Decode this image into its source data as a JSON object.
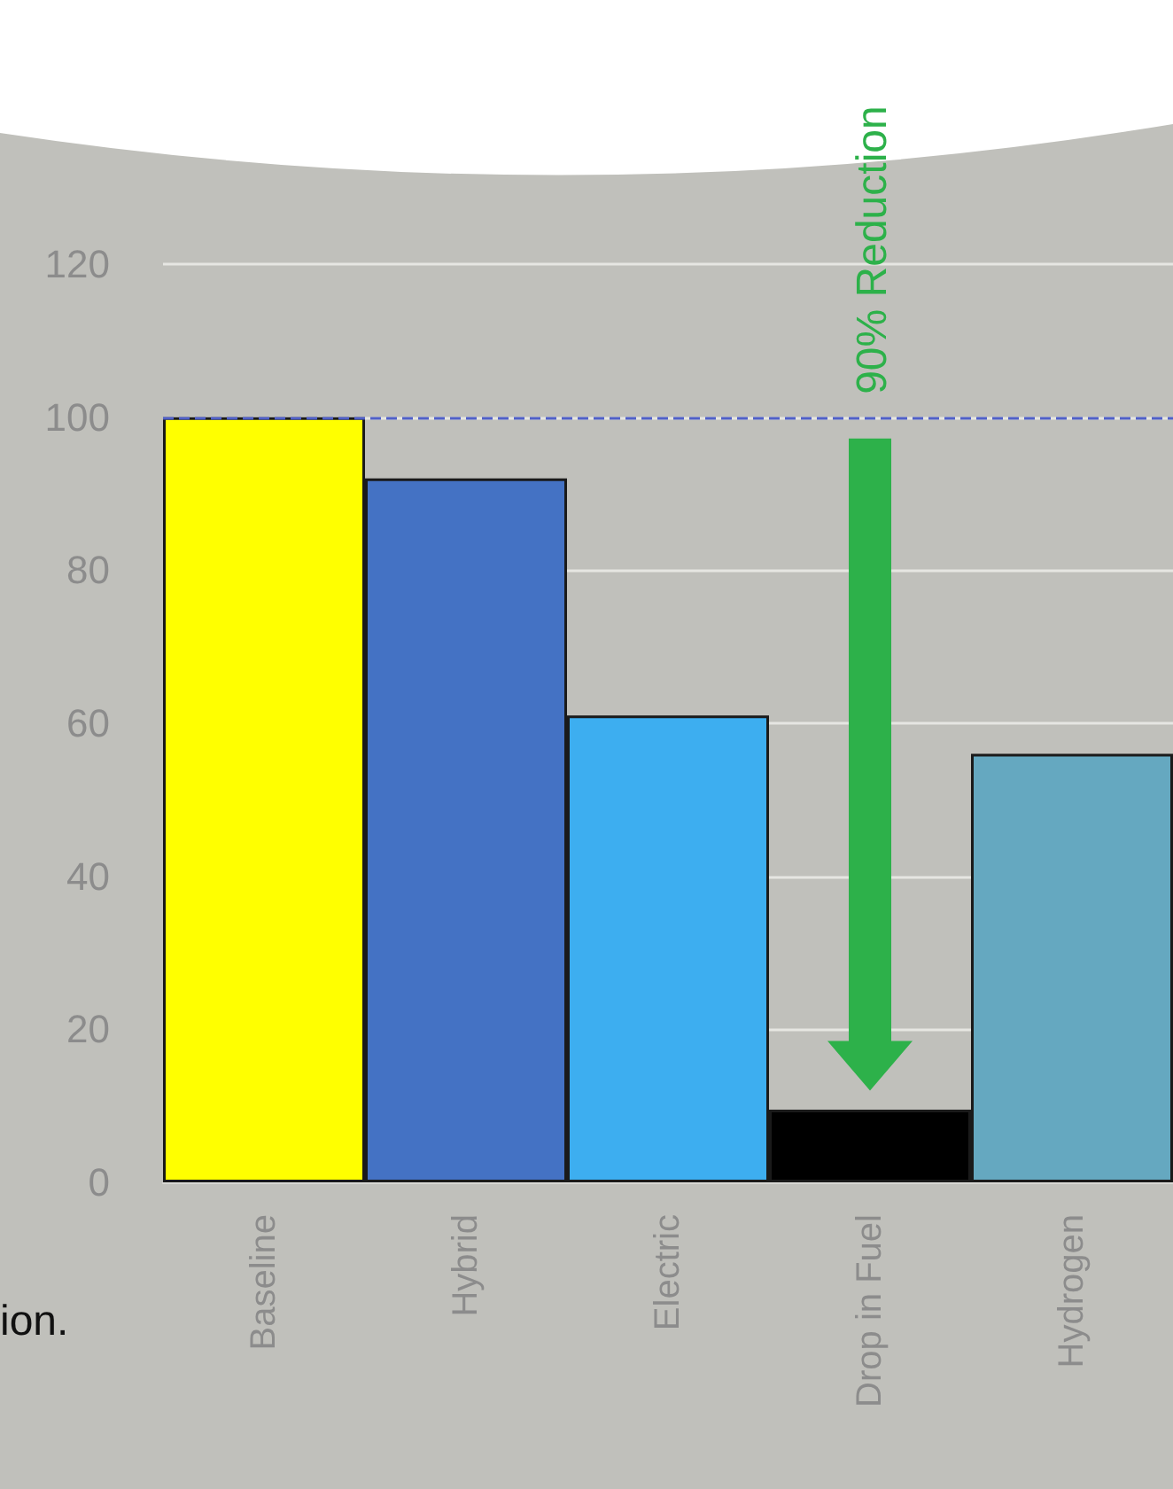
{
  "chart_data": {
    "type": "bar",
    "categories": [
      "Baseline",
      "Hybrid",
      "Electric",
      "Drop in Fuel",
      "Hydrogen"
    ],
    "values": [
      100,
      92,
      61,
      9.5,
      56
    ],
    "colors": [
      "#ffff00",
      "#4472c4",
      "#3daef0",
      "#000000",
      "#65a8c0"
    ],
    "ylim": [
      0,
      120
    ],
    "yticks": [
      0,
      20,
      40,
      60,
      80,
      100,
      120
    ],
    "grid": "y",
    "ref_lines": [
      {
        "axis": "y",
        "value": 100,
        "color": "#5060c8",
        "line_style": "dashed"
      }
    ],
    "annotations": [
      "90% Reduction",
      "ion."
    ]
  }
}
